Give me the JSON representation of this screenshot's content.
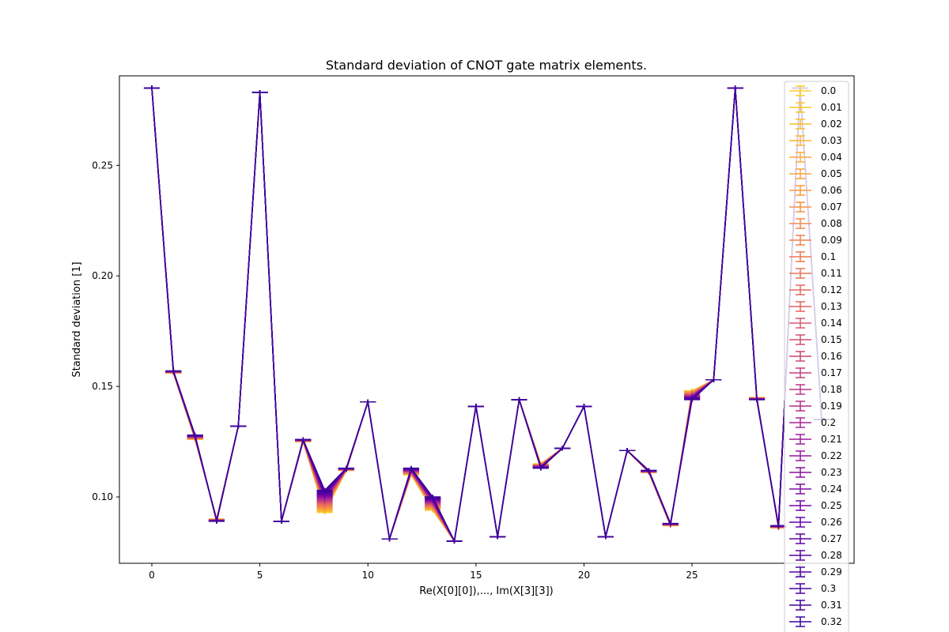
{
  "chart_data": {
    "type": "line",
    "title": "Standard deviation of CNOT gate matrix elements.",
    "xlabel": "Re(X[0][0]),..., Im(X[3][3])",
    "ylabel": "Standard deviation [1]",
    "xlim": [
      -1.5,
      32.5
    ],
    "ylim": [
      0.07,
      0.2905
    ],
    "x_ticks": [
      0,
      5,
      10,
      15,
      20,
      25,
      30
    ],
    "y_ticks": [
      0.1,
      0.15,
      0.2,
      0.25
    ],
    "x_tick_labels": [
      "0",
      "5",
      "10",
      "15",
      "20",
      "25",
      "30"
    ],
    "y_tick_labels": [
      "0.10",
      "0.15",
      "0.20",
      "0.25"
    ],
    "legend_position": "top-right",
    "colormap": [
      "#fcce25",
      "#f89540",
      "#e16462",
      "#b12a90",
      "#6a00a8",
      "#3a049a"
    ],
    "x": [
      0,
      1,
      2,
      3,
      4,
      5,
      6,
      7,
      8,
      9,
      10,
      11,
      12,
      13,
      14,
      15,
      16,
      17,
      18,
      19,
      20,
      21,
      22,
      23,
      24,
      25,
      26,
      27,
      28,
      29,
      30,
      31
    ],
    "series_first": {
      "name": "0.0",
      "values": [
        0.285,
        0.156,
        0.126,
        0.09,
        0.132,
        0.283,
        0.089,
        0.125,
        0.093,
        0.112,
        0.143,
        0.081,
        0.11,
        0.094,
        0.08,
        0.141,
        0.082,
        0.144,
        0.115,
        0.122,
        0.141,
        0.082,
        0.121,
        0.111,
        0.087,
        0.148,
        0.153,
        0.285,
        0.145,
        0.086,
        0.285,
        0.135
      ]
    },
    "series_last": {
      "name": "0.32",
      "values": [
        0.285,
        0.157,
        0.128,
        0.089,
        0.132,
        0.283,
        0.089,
        0.126,
        0.103,
        0.113,
        0.143,
        0.081,
        0.113,
        0.1,
        0.08,
        0.141,
        0.082,
        0.144,
        0.113,
        0.122,
        0.141,
        0.082,
        0.121,
        0.112,
        0.088,
        0.144,
        0.153,
        0.285,
        0.144,
        0.087,
        0.285,
        0.135
      ]
    },
    "series_names": [
      "0.0",
      "0.01",
      "0.02",
      "0.03",
      "0.04",
      "0.05",
      "0.06",
      "0.07",
      "0.08",
      "0.09",
      "0.1",
      "0.11",
      "0.12",
      "0.13",
      "0.14",
      "0.15",
      "0.16",
      "0.17",
      "0.18",
      "0.19",
      "0.2",
      "0.21",
      "0.22",
      "0.23",
      "0.24",
      "0.25",
      "0.26",
      "0.27",
      "0.28",
      "0.29",
      "0.3",
      "0.31",
      "0.32"
    ],
    "series_count": 33
  }
}
